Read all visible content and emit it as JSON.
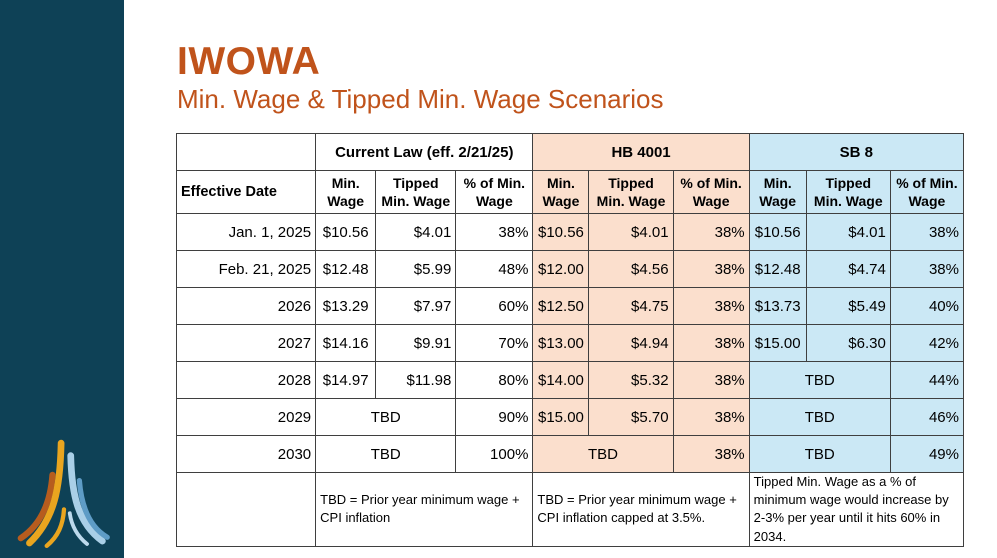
{
  "colors": {
    "accent_orange": "#c0531b",
    "sidebar_teal": "#0e4156",
    "hb4001_bg": "#fbdfcd",
    "sb8_bg": "#cbe8f5",
    "grid_border": "#3f3f3f"
  },
  "icons": {
    "logo": "iwowa-logo"
  },
  "header": {
    "title": "IWOWA",
    "subtitle": "Min. Wage & Tipped Min. Wage Scenarios"
  },
  "table": {
    "row_header_label": "Effective Date",
    "groups": [
      {
        "id": "current_law",
        "label": "Current Law (eff. 2/21/25)"
      },
      {
        "id": "hb4001",
        "label": "HB 4001"
      },
      {
        "id": "sb8",
        "label": "SB 8"
      }
    ],
    "col_headers": [
      "Min. Wage",
      "Tipped Min. Wage",
      "% of Min. Wage"
    ],
    "rows": [
      {
        "date": "Jan. 1, 2025",
        "current_law": [
          "$10.56",
          "$4.01",
          "38%"
        ],
        "hb4001": [
          "$10.56",
          "$4.01",
          "38%"
        ],
        "sb8": [
          "$10.56",
          "$4.01",
          "38%"
        ]
      },
      {
        "date": "Feb. 21, 2025",
        "current_law": [
          "$12.48",
          "$5.99",
          "48%"
        ],
        "hb4001": [
          "$12.00",
          "$4.56",
          "38%"
        ],
        "sb8": [
          "$12.48",
          "$4.74",
          "38%"
        ]
      },
      {
        "date": "2026",
        "current_law": [
          "$13.29",
          "$7.97",
          "60%"
        ],
        "hb4001": [
          "$12.50",
          "$4.75",
          "38%"
        ],
        "sb8": [
          "$13.73",
          "$5.49",
          "40%"
        ]
      },
      {
        "date": "2027",
        "current_law": [
          "$14.16",
          "$9.91",
          "70%"
        ],
        "hb4001": [
          "$13.00",
          "$4.94",
          "38%"
        ],
        "sb8": [
          "$15.00",
          "$6.30",
          "42%"
        ]
      },
      {
        "date": "2028",
        "current_law": [
          "$14.97",
          "$11.98",
          "80%"
        ],
        "hb4001": [
          "$14.00",
          "$5.32",
          "38%"
        ],
        "sb8": [
          "TBD",
          "44%"
        ]
      },
      {
        "date": "2029",
        "current_law": [
          "TBD",
          "90%"
        ],
        "hb4001": [
          "$15.00",
          "$5.70",
          "38%"
        ],
        "sb8": [
          "TBD",
          "46%"
        ]
      },
      {
        "date": "2030",
        "current_law": [
          "TBD",
          "100%"
        ],
        "hb4001": [
          "TBD",
          "38%"
        ],
        "sb8": [
          "TBD",
          "49%"
        ]
      }
    ],
    "notes": [
      "TBD = Prior year minimum wage + CPI inflation",
      "TBD = Prior year minimum wage + CPI inflation capped at 3.5%.",
      "Tipped Min. Wage as a % of minimum wage would increase by 2-3% per year until it hits 60% in 2034."
    ]
  }
}
